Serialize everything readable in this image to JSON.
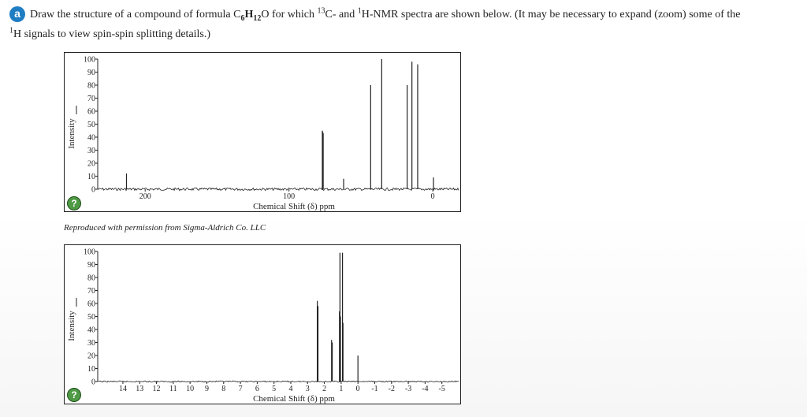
{
  "question": {
    "badge": "a",
    "parts": [
      "Draw the structure of a compound of formula C",
      "6",
      "H",
      "12",
      "O for which ",
      "13",
      "C- and ",
      "1",
      "H-NMR spectra are shown below. (It may be necessary to expand (zoom) some of the"
    ],
    "cont_parts": [
      "1",
      "H signals to view spin-spin splitting details.)"
    ]
  },
  "credit": "Reproduced with permission from Sigma-Aldrich Co. LLC",
  "help_label": "?",
  "colors": {
    "badge": "#1f7dc3",
    "help": "#4f9a45",
    "line": "#222222"
  },
  "chart_data": [
    {
      "type": "line",
      "ylabel": "Intensity",
      "xlabel": "Chemical Shift (δ) ppm",
      "xlim": [
        233,
        -18
      ],
      "ylim": [
        0,
        100
      ],
      "y_ticks": [
        0,
        10,
        20,
        30,
        40,
        50,
        60,
        70,
        80,
        90,
        100
      ],
      "x_ticks": [
        200,
        100,
        0
      ],
      "peaks": [
        {
          "x": 213.0,
          "y": 12
        },
        {
          "x": 76.8,
          "y": 45
        },
        {
          "x": 76.5,
          "y": 44
        },
        {
          "x": 76.2,
          "y": 43
        },
        {
          "x": 62.0,
          "y": 8
        },
        {
          "x": 43.2,
          "y": 80
        },
        {
          "x": 35.5,
          "y": 100
        },
        {
          "x": 17.8,
          "y": 80
        },
        {
          "x": 14.5,
          "y": 98
        },
        {
          "x": 10.5,
          "y": 96
        },
        {
          "x": -0.5,
          "y": 9
        }
      ]
    },
    {
      "type": "line",
      "ylabel": "Intensity",
      "xlabel": "Chemical Shift (δ) ppm",
      "xlim": [
        15.5,
        -6
      ],
      "ylim": [
        0,
        100
      ],
      "y_ticks": [
        0,
        10,
        20,
        30,
        40,
        50,
        60,
        70,
        80,
        90,
        100
      ],
      "x_ticks": [
        14,
        13,
        12,
        11,
        10,
        9,
        8,
        7,
        6,
        5,
        4,
        3,
        2,
        1,
        0,
        -1,
        -2,
        -3,
        -4,
        -5
      ],
      "peaks": [
        {
          "x": 2.42,
          "y": 62
        },
        {
          "x": 2.4,
          "y": 42
        },
        {
          "x": 2.38,
          "y": 58
        },
        {
          "x": 1.57,
          "y": 32
        },
        {
          "x": 1.55,
          "y": 25
        },
        {
          "x": 1.53,
          "y": 30
        },
        {
          "x": 1.1,
          "y": 54
        },
        {
          "x": 1.07,
          "y": 99
        },
        {
          "x": 1.04,
          "y": 50
        },
        {
          "x": 0.92,
          "y": 99
        },
        {
          "x": 0.89,
          "y": 45
        },
        {
          "x": 0.0,
          "y": 20
        }
      ]
    }
  ]
}
